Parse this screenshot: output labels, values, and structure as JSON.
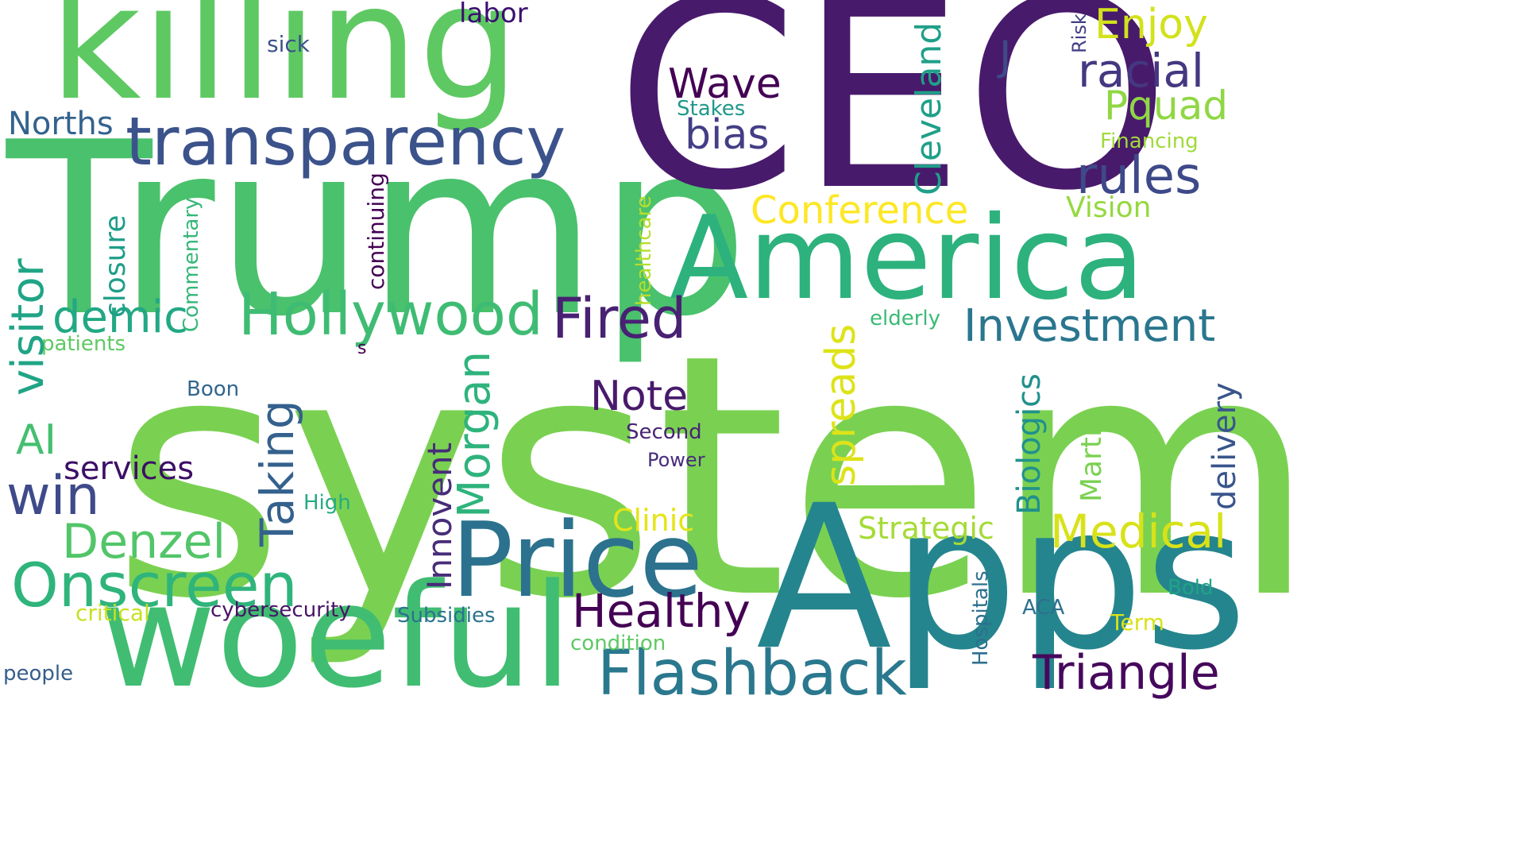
{
  "words": [
    {
      "text": "system",
      "color": "#7ad151"
    },
    {
      "text": "Trump",
      "color": "#4ac16d"
    },
    {
      "text": "CEO",
      "color": "#481a6c"
    },
    {
      "text": "killing",
      "color": "#5ec962"
    },
    {
      "text": "America",
      "color": "#2db27d"
    },
    {
      "text": "Apps",
      "color": "#25858e"
    },
    {
      "text": "woeful",
      "color": "#40bd72"
    },
    {
      "text": "Price",
      "color": "#2c728e"
    },
    {
      "text": "transparency",
      "color": "#3b528b"
    },
    {
      "text": "Flashback",
      "color": "#2a788e"
    },
    {
      "text": "Hollywood",
      "color": "#3fbc73"
    },
    {
      "text": "Onscreen",
      "color": "#2fb47c"
    },
    {
      "text": "Healthy",
      "color": "#440154"
    },
    {
      "text": "Fired",
      "color": "#482173"
    },
    {
      "text": "Investment",
      "color": "#2a768e"
    },
    {
      "text": "Triangle",
      "color": "#46085c"
    },
    {
      "text": "Medical",
      "color": "#d8e219"
    },
    {
      "text": "rules",
      "color": "#3e4989"
    },
    {
      "text": "racial",
      "color": "#453781"
    },
    {
      "text": "Pquad",
      "color": "#8fd744"
    },
    {
      "text": "Enjoy",
      "color": "#d2e21b"
    },
    {
      "text": "Wave",
      "color": "#440154"
    },
    {
      "text": "bias",
      "color": "#433e85"
    },
    {
      "text": "Note",
      "color": "#481a6c"
    },
    {
      "text": "Denzel",
      "color": "#52c569"
    },
    {
      "text": "win",
      "color": "#3e4a89"
    },
    {
      "text": "demic",
      "color": "#22a884"
    },
    {
      "text": "visitor",
      "color": "#20a486"
    },
    {
      "text": "Conference",
      "color": "#fde725"
    },
    {
      "text": "Taking",
      "color": "#34618d"
    },
    {
      "text": "Morgan",
      "color": "#2eb37c"
    },
    {
      "text": "spreads",
      "color": "#dde318"
    },
    {
      "text": "Innovent",
      "color": "#472c7a"
    },
    {
      "text": "Cleveland",
      "color": "#1fa088"
    },
    {
      "text": "Norths",
      "color": "#33638d"
    },
    {
      "text": "AI",
      "color": "#44bf70"
    },
    {
      "text": "services",
      "color": "#3c0f66"
    },
    {
      "text": "Biologics",
      "color": "#21918c"
    },
    {
      "text": "Strategic",
      "color": "#a5db36"
    },
    {
      "text": "Clinic",
      "color": "#e5e419"
    },
    {
      "text": "Vision",
      "color": "#95d840"
    },
    {
      "text": "closure",
      "color": "#1f9e89"
    },
    {
      "text": "J",
      "color": "#3e4989"
    },
    {
      "text": "labor",
      "color": "#3b0f70"
    },
    {
      "text": "delivery",
      "color": "#39558c"
    },
    {
      "text": "Martin",
      "color": "#7ad151"
    },
    {
      "text": "cybersecurity",
      "color": "#481467"
    },
    {
      "text": "Subsidies",
      "color": "#2c738e"
    },
    {
      "text": "condition",
      "color": "#5ec962"
    },
    {
      "text": "critical",
      "color": "#c8e020"
    },
    {
      "text": "continuing",
      "color": "#440154"
    },
    {
      "text": "Commentary",
      "color": "#35b779"
    },
    {
      "text": "healthcare",
      "color": "#b5de2b"
    },
    {
      "text": "sick",
      "color": "#3b528b"
    },
    {
      "text": "Stakes",
      "color": "#1f988b"
    },
    {
      "text": "Financing",
      "color": "#a0da39"
    },
    {
      "text": "Risk",
      "color": "#423f85"
    },
    {
      "text": "elderly",
      "color": "#3aba76"
    },
    {
      "text": "patients",
      "color": "#5ec962"
    },
    {
      "text": "Boon",
      "color": "#31668e"
    },
    {
      "text": "Second",
      "color": "#482475"
    },
    {
      "text": "Power",
      "color": "#472d7b"
    },
    {
      "text": "High",
      "color": "#25ab82"
    },
    {
      "text": "ACA",
      "color": "#2d708e"
    },
    {
      "text": "Bold",
      "color": "#20a386"
    },
    {
      "text": "Term",
      "color": "#d8e219"
    },
    {
      "text": "Hospitals",
      "color": "#2d708e"
    },
    {
      "text": "people",
      "color": "#365d8d"
    },
    {
      "text": "s",
      "color": "#440154"
    }
  ]
}
